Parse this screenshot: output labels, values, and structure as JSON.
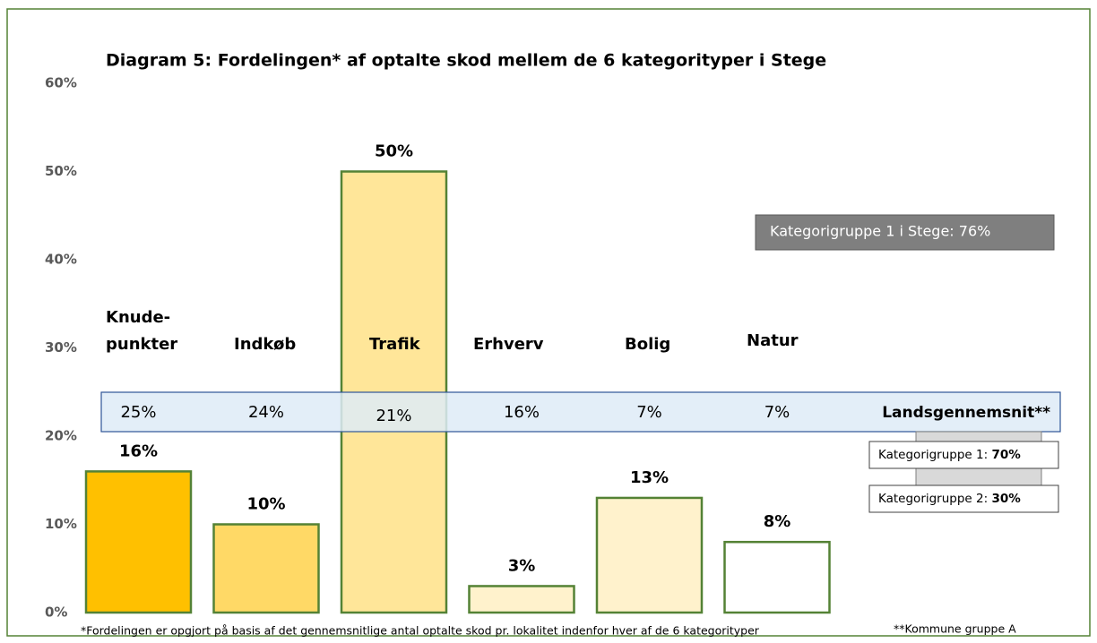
{
  "chart_data": {
    "type": "bar",
    "title": "Diagram 5: Fordelingen* af optalte skod mellem de 6 kategorityper i Stege",
    "categories": [
      "Knude-\npunkter",
      "Indkøb",
      "Trafik",
      "Erhverv",
      "Bolig",
      "Natur"
    ],
    "values": [
      16,
      10,
      50,
      3,
      13,
      8
    ],
    "value_labels": [
      "16%",
      "10%",
      "50%",
      "3%",
      "13%",
      "8%"
    ],
    "colors": [
      "#ffc000",
      "#ffd966",
      "#ffe699",
      "#fff2cc",
      "#fff2cc",
      "#ffffff"
    ],
    "ylim": [
      0,
      60
    ],
    "yticks": [
      {
        "value": 0,
        "label": "0%"
      },
      {
        "value": 10,
        "label": "10%"
      },
      {
        "value": 20,
        "label": "20%"
      },
      {
        "value": 30,
        "label": "30%"
      },
      {
        "value": 40,
        "label": "40%"
      },
      {
        "value": 50,
        "label": "50%"
      },
      {
        "value": 60,
        "label": "60%"
      }
    ],
    "landsgennemsnit": {
      "name": "Landsgennemsnit**",
      "values": [
        25,
        24,
        21,
        16,
        7,
        7
      ],
      "value_labels": [
        "25%",
        "24%",
        "21%",
        "16%",
        "7%",
        "7%"
      ]
    },
    "annotations": {
      "stege_group": "Kategorigruppe 1 i Stege: 76%",
      "group1": {
        "label": "Kategorigruppe 1: ",
        "value": "70%"
      },
      "group2": {
        "label": "Kategorigruppe 2: ",
        "value": "30%"
      }
    },
    "footnote": "*Fordelingen er opgjort på basis af det gennemsnitlige antal optalte skod pr. lokalitet indenfor hver af de 6 kategorityper",
    "footnote2": "**Kommune gruppe A"
  }
}
